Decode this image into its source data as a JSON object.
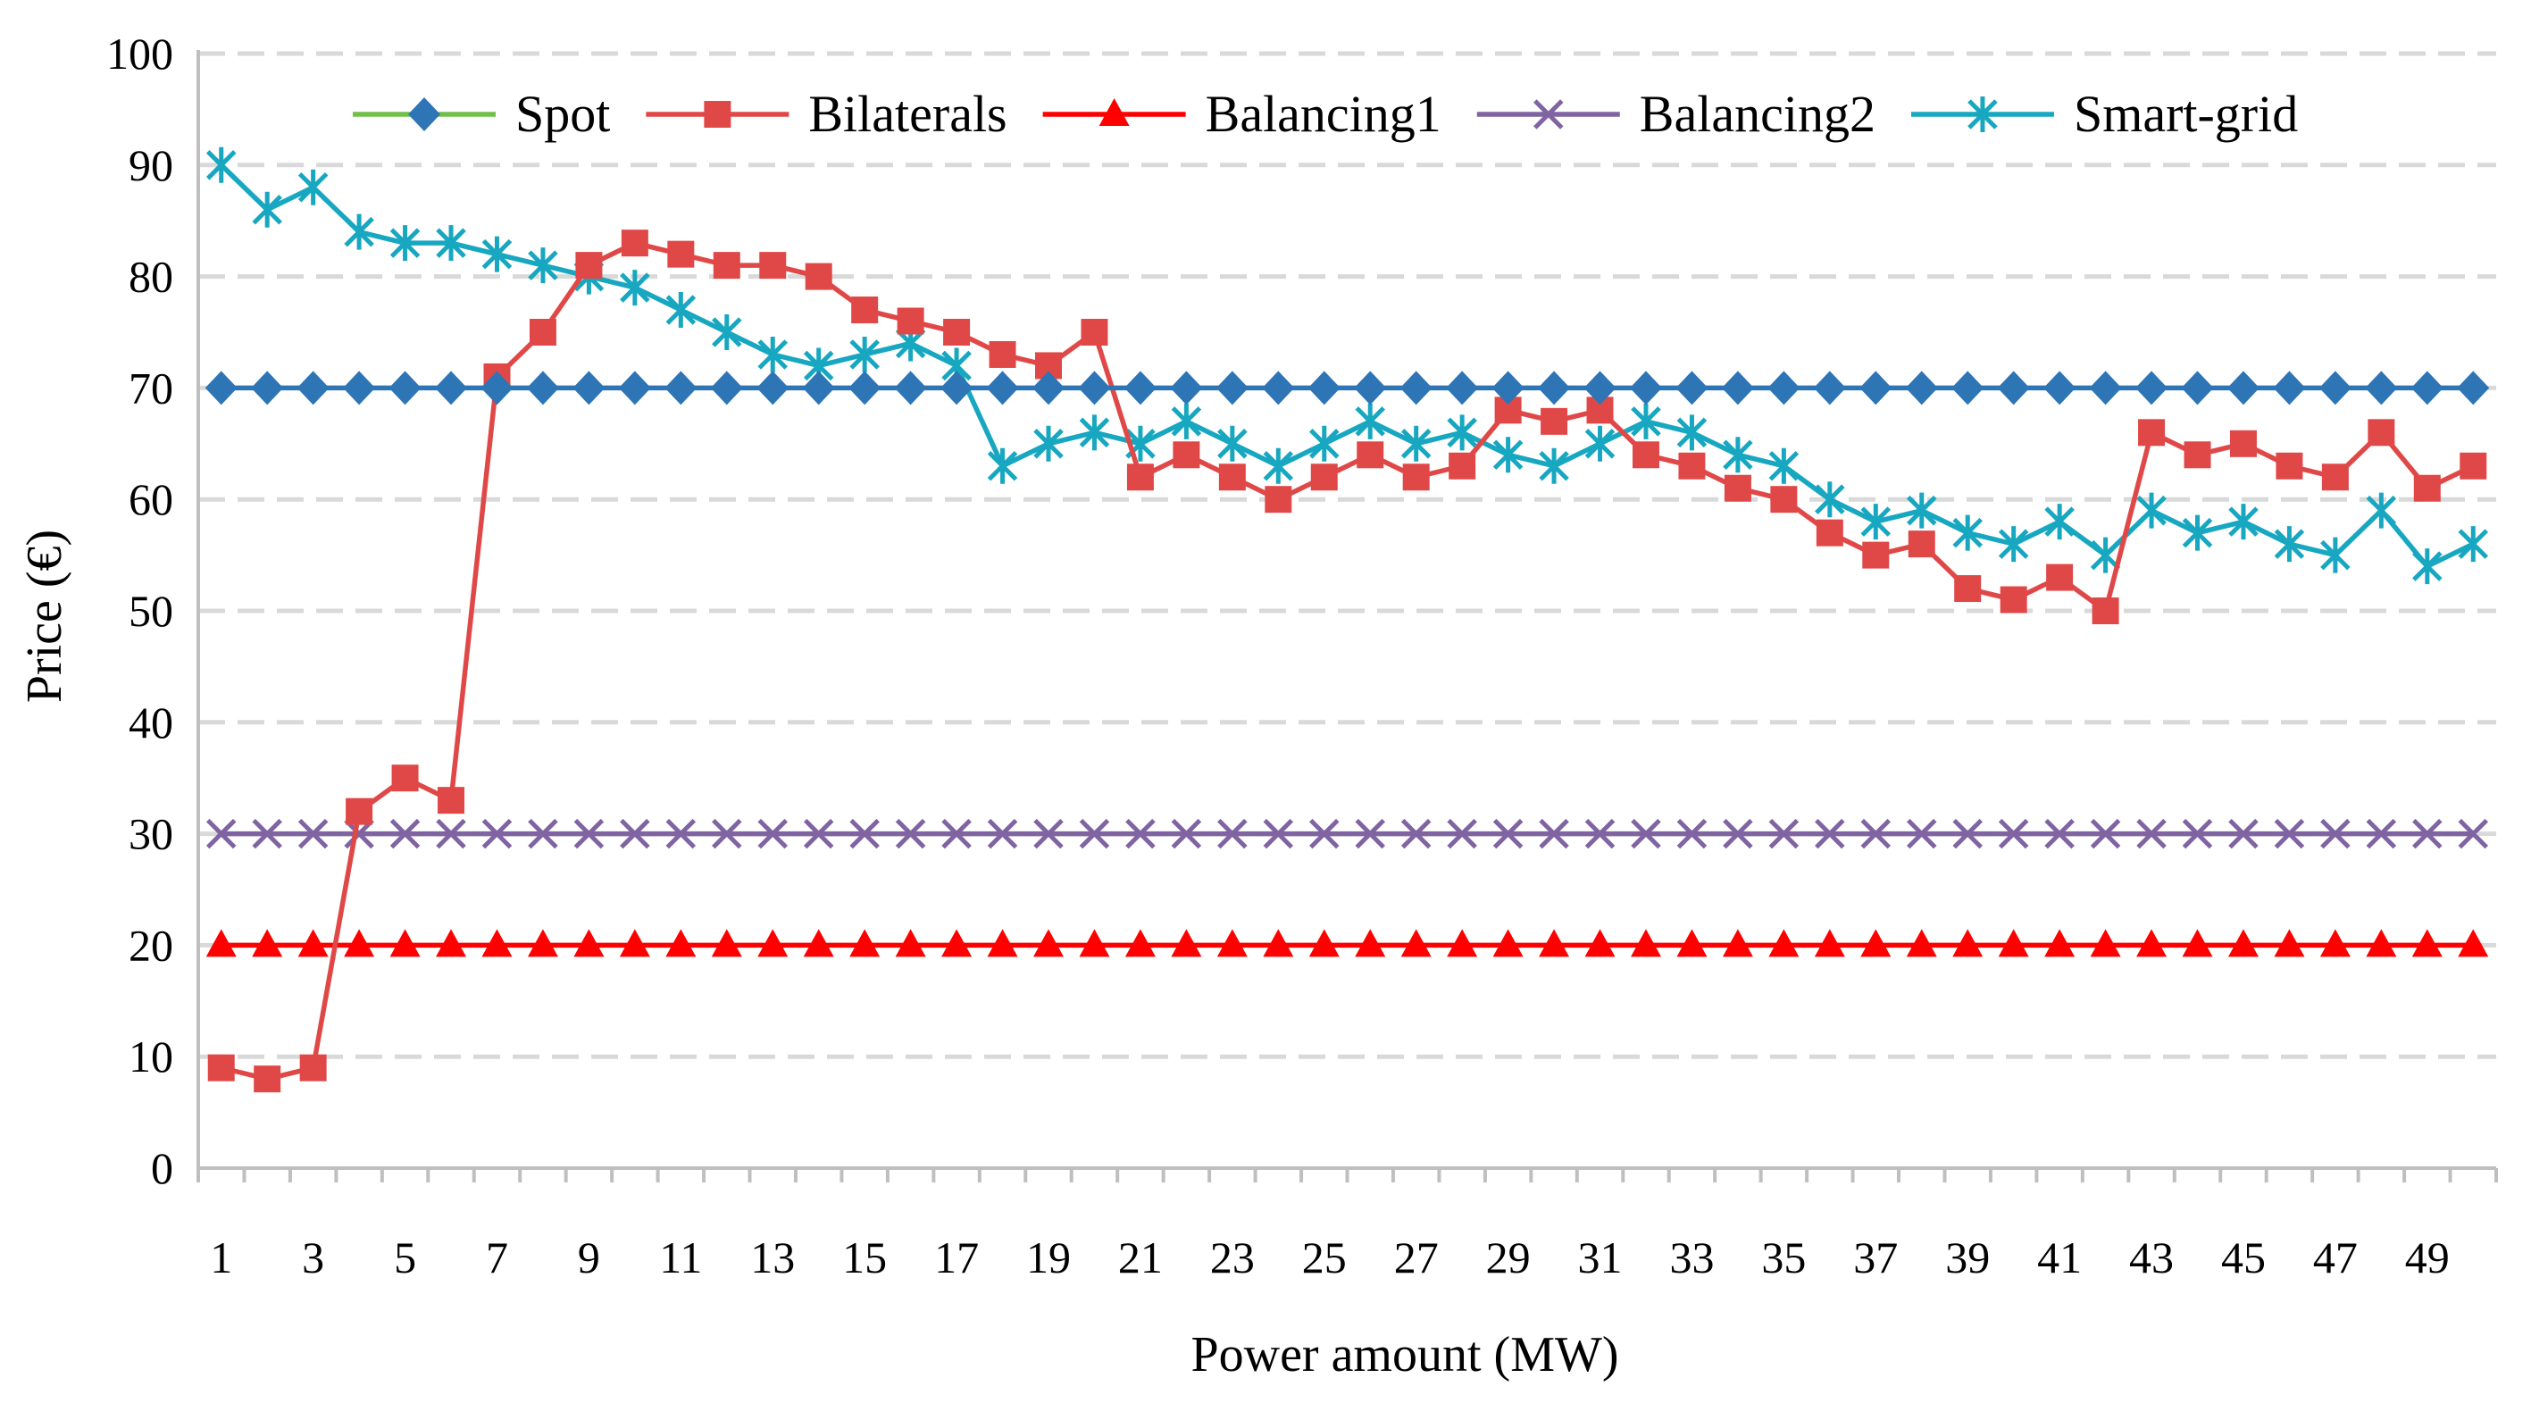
{
  "chart_data": {
    "type": "line",
    "title": "",
    "xlabel": "Power amount (MW)",
    "ylabel": "Price (€)",
    "ylim": [
      0,
      100
    ],
    "yticks": [
      "0",
      "10",
      "20",
      "30",
      "40",
      "50",
      "60",
      "70",
      "80",
      "90",
      "100"
    ],
    "xtick_labels": [
      "1",
      "3",
      "5",
      "7",
      "9",
      "11",
      "13",
      "15",
      "17",
      "19",
      "21",
      "23",
      "25",
      "27",
      "29",
      "31",
      "33",
      "35",
      "37",
      "39",
      "41",
      "43",
      "45",
      "47",
      "49"
    ],
    "x": [
      1,
      2,
      3,
      4,
      5,
      6,
      7,
      8,
      9,
      10,
      11,
      12,
      13,
      14,
      15,
      16,
      17,
      18,
      19,
      20,
      21,
      22,
      23,
      24,
      25,
      26,
      27,
      28,
      29,
      30,
      31,
      32,
      33,
      34,
      35,
      36,
      37,
      38,
      39,
      40,
      41,
      42,
      43,
      44,
      45,
      46,
      47,
      48,
      49,
      50
    ],
    "grid": true,
    "legend_position": "top",
    "series": [
      {
        "name": "Spot",
        "color": "#2e75b6",
        "legend_line_color": "#70c04a",
        "marker": "diamond",
        "values": [
          70,
          70,
          70,
          70,
          70,
          70,
          70,
          70,
          70,
          70,
          70,
          70,
          70,
          70,
          70,
          70,
          70,
          70,
          70,
          70,
          70,
          70,
          70,
          70,
          70,
          70,
          70,
          70,
          70,
          70,
          70,
          70,
          70,
          70,
          70,
          70,
          70,
          70,
          70,
          70,
          70,
          70,
          70,
          70,
          70,
          70,
          70,
          70,
          70,
          70
        ]
      },
      {
        "name": "Bilaterals",
        "color": "#e04848",
        "marker": "square",
        "values": [
          9,
          8,
          9,
          32,
          35,
          33,
          71,
          75,
          81,
          83,
          82,
          81,
          81,
          80,
          77,
          76,
          75,
          73,
          72,
          75,
          62,
          64,
          62,
          60,
          62,
          64,
          62,
          63,
          68,
          67,
          68,
          64,
          63,
          61,
          60,
          57,
          55,
          56,
          52,
          51,
          53,
          50,
          66,
          64,
          65,
          63,
          62,
          66,
          61,
          63
        ]
      },
      {
        "name": "Balancing1",
        "color": "#ff0000",
        "marker": "triangle",
        "values": [
          20,
          20,
          20,
          20,
          20,
          20,
          20,
          20,
          20,
          20,
          20,
          20,
          20,
          20,
          20,
          20,
          20,
          20,
          20,
          20,
          20,
          20,
          20,
          20,
          20,
          20,
          20,
          20,
          20,
          20,
          20,
          20,
          20,
          20,
          20,
          20,
          20,
          20,
          20,
          20,
          20,
          20,
          20,
          20,
          20,
          20,
          20,
          20,
          20,
          20
        ]
      },
      {
        "name": "Balancing2",
        "color": "#8064a2",
        "marker": "x",
        "values": [
          30,
          30,
          30,
          30,
          30,
          30,
          30,
          30,
          30,
          30,
          30,
          30,
          30,
          30,
          30,
          30,
          30,
          30,
          30,
          30,
          30,
          30,
          30,
          30,
          30,
          30,
          30,
          30,
          30,
          30,
          30,
          30,
          30,
          30,
          30,
          30,
          30,
          30,
          30,
          30,
          30,
          30,
          30,
          30,
          30,
          30,
          30,
          30,
          30,
          30
        ]
      },
      {
        "name": "Smart-grid",
        "color": "#17a7c0",
        "marker": "star",
        "values": [
          90,
          86,
          88,
          84,
          83,
          83,
          82,
          81,
          80,
          79,
          77,
          75,
          73,
          72,
          73,
          74,
          72,
          63,
          65,
          66,
          65,
          67,
          65,
          63,
          65,
          67,
          65,
          66,
          64,
          63,
          65,
          67,
          66,
          64,
          63,
          60,
          58,
          59,
          57,
          56,
          58,
          55,
          59,
          57,
          58,
          56,
          55,
          59,
          54,
          56
        ]
      }
    ]
  }
}
